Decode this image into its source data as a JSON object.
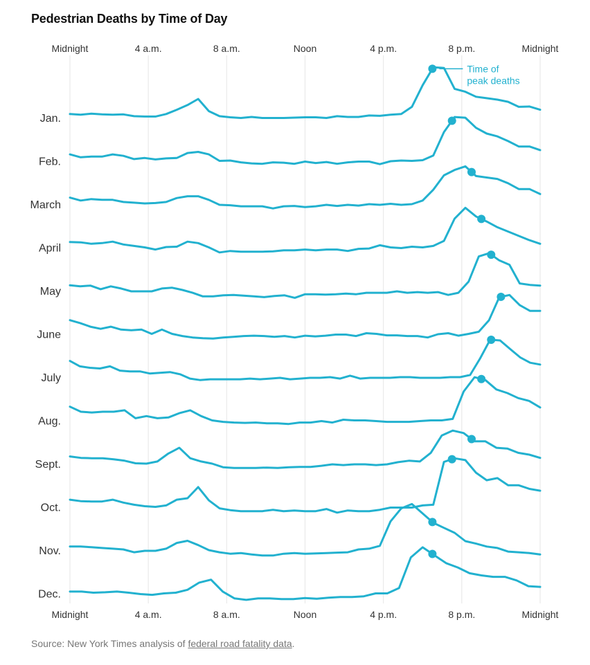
{
  "title": "Pedestrian Deaths by Time of Day",
  "source": {
    "prefix": "Source: New York Times analysis of ",
    "link_text": "federal road fatality data",
    "suffix": "."
  },
  "colors": {
    "line": "#22b1cf",
    "grid": "#e6e6e6",
    "text": "#333333"
  },
  "chart_data": {
    "type": "line",
    "x_ticks": [
      "Midnight",
      "4 a.m.",
      "8 a.m.",
      "Noon",
      "4 p.m.",
      "8 p.m.",
      "Midnight"
    ],
    "x_tick_hours": [
      0,
      4,
      8,
      12,
      16,
      20,
      24
    ],
    "annotation": "Time of peak deaths",
    "grid": "vertical",
    "series": [
      {
        "name": "Jan.",
        "peak_hour": 18.5,
        "values": [
          0.1,
          0.08,
          0.11,
          0.09,
          0.08,
          0.09,
          0.04,
          0.03,
          0.03,
          0.1,
          0.22,
          0.35,
          0.52,
          0.18,
          0.04,
          0.01,
          -0.01,
          0.02,
          -0.01,
          -0.01,
          -0.01,
          0.0,
          0.01,
          0.01,
          -0.01,
          0.04,
          0.02,
          0.02,
          0.06,
          0.05,
          0.08,
          0.1,
          0.3,
          0.9,
          1.4,
          1.38,
          0.8,
          0.72,
          0.58,
          0.54,
          0.5,
          0.44,
          0.3,
          0.31,
          0.22
        ]
      },
      {
        "name": "Feb.",
        "peak_hour": 19.5,
        "values": [
          0.18,
          0.1,
          0.12,
          0.12,
          0.18,
          0.14,
          0.05,
          0.08,
          0.04,
          0.07,
          0.08,
          0.22,
          0.25,
          0.18,
          0.0,
          0.01,
          -0.04,
          -0.07,
          -0.08,
          -0.04,
          -0.05,
          -0.08,
          -0.02,
          -0.06,
          -0.03,
          -0.08,
          -0.04,
          -0.02,
          -0.02,
          -0.09,
          -0.01,
          0.01,
          0.0,
          0.02,
          0.15,
          0.8,
          1.22,
          1.2,
          0.92,
          0.76,
          0.68,
          0.55,
          0.4,
          0.4,
          0.3
        ]
      },
      {
        "name": "March",
        "peak_hour": 20.5,
        "values": [
          0.18,
          0.1,
          0.14,
          0.12,
          0.12,
          0.06,
          0.04,
          0.02,
          0.03,
          0.06,
          0.17,
          0.22,
          0.22,
          0.12,
          -0.02,
          -0.03,
          -0.06,
          -0.06,
          -0.06,
          -0.12,
          -0.06,
          -0.05,
          -0.08,
          -0.06,
          -0.02,
          -0.05,
          -0.02,
          -0.04,
          0.0,
          -0.02,
          0.01,
          -0.02,
          0.0,
          0.1,
          0.4,
          0.8,
          0.95,
          1.05,
          0.78,
          0.74,
          0.7,
          0.58,
          0.42,
          0.42,
          0.28
        ]
      },
      {
        "name": "April",
        "peak_hour": 21.0,
        "values": [
          0.15,
          0.14,
          0.1,
          0.12,
          0.16,
          0.08,
          0.04,
          0.0,
          -0.06,
          0.01,
          0.02,
          0.16,
          0.12,
          0.0,
          -0.14,
          -0.1,
          -0.12,
          -0.12,
          -0.12,
          -0.11,
          -0.08,
          -0.08,
          -0.06,
          -0.08,
          -0.06,
          -0.06,
          -0.1,
          -0.04,
          -0.03,
          0.06,
          0.0,
          -0.02,
          0.02,
          0.0,
          0.04,
          0.18,
          0.8,
          1.1,
          0.86,
          0.72,
          0.56,
          0.44,
          0.32,
          0.2,
          0.1
        ]
      },
      {
        "name": "May",
        "peak_hour": 21.5,
        "values": [
          0.15,
          0.12,
          0.14,
          0.04,
          0.12,
          0.06,
          -0.02,
          -0.02,
          -0.02,
          0.06,
          0.08,
          0.02,
          -0.06,
          -0.16,
          -0.16,
          -0.13,
          -0.12,
          -0.14,
          -0.16,
          -0.18,
          -0.15,
          -0.13,
          -0.2,
          -0.1,
          -0.1,
          -0.11,
          -0.1,
          -0.08,
          -0.1,
          -0.06,
          -0.06,
          -0.06,
          -0.02,
          -0.06,
          -0.04,
          -0.06,
          -0.04,
          -0.12,
          -0.06,
          0.25,
          0.95,
          1.04,
          0.84,
          0.72,
          0.2,
          0.16,
          0.14
        ]
      },
      {
        "name": "June",
        "peak_hour": 22.0,
        "values": [
          0.38,
          0.3,
          0.2,
          0.14,
          0.2,
          0.12,
          0.1,
          0.12,
          0.0,
          0.12,
          0.0,
          -0.06,
          -0.1,
          -0.12,
          -0.13,
          -0.1,
          -0.08,
          -0.06,
          -0.05,
          -0.06,
          -0.08,
          -0.06,
          -0.1,
          -0.05,
          -0.07,
          -0.05,
          -0.02,
          -0.02,
          -0.06,
          0.02,
          0.0,
          -0.04,
          -0.04,
          -0.06,
          -0.06,
          -0.1,
          -0.01,
          0.02,
          -0.05,
          0.0,
          0.06,
          0.38,
          1.02,
          1.08,
          0.8,
          0.64,
          0.64
        ]
      },
      {
        "name": "July",
        "peak_hour": 21.5,
        "values": [
          0.45,
          0.3,
          0.26,
          0.24,
          0.3,
          0.18,
          0.16,
          0.16,
          0.1,
          0.12,
          0.14,
          0.08,
          -0.04,
          -0.08,
          -0.06,
          -0.06,
          -0.06,
          -0.06,
          -0.04,
          -0.06,
          -0.04,
          -0.02,
          -0.06,
          -0.04,
          -0.02,
          -0.02,
          0.0,
          -0.04,
          0.04,
          -0.04,
          -0.02,
          -0.02,
          -0.02,
          0.0,
          0.0,
          -0.02,
          -0.02,
          -0.02,
          0.0,
          0.0,
          0.06,
          0.52,
          1.04,
          1.02,
          0.78,
          0.55,
          0.4,
          0.35
        ]
      },
      {
        "name": "Aug.",
        "peak_hour": 21.0,
        "values": [
          0.38,
          0.24,
          0.22,
          0.24,
          0.24,
          0.28,
          0.06,
          0.12,
          0.06,
          0.08,
          0.2,
          0.28,
          0.12,
          0.0,
          -0.04,
          -0.06,
          -0.07,
          -0.06,
          -0.08,
          -0.08,
          -0.1,
          -0.06,
          -0.06,
          -0.02,
          -0.06,
          0.02,
          0.0,
          0.0,
          -0.02,
          -0.04,
          -0.04,
          -0.04,
          -0.02,
          0.0,
          0.0,
          0.04,
          0.8,
          1.2,
          1.12,
          0.86,
          0.76,
          0.62,
          0.54,
          0.36
        ]
      },
      {
        "name": "Sept.",
        "peak_hour": 20.5,
        "values": [
          0.2,
          0.16,
          0.15,
          0.15,
          0.12,
          0.08,
          0.01,
          0.0,
          0.06,
          0.28,
          0.44,
          0.15,
          0.06,
          0.0,
          -0.1,
          -0.12,
          -0.12,
          -0.12,
          -0.11,
          -0.12,
          -0.1,
          -0.09,
          -0.09,
          -0.06,
          -0.02,
          -0.04,
          -0.02,
          -0.02,
          -0.04,
          -0.02,
          0.04,
          0.08,
          0.06,
          0.3,
          0.78,
          0.92,
          0.85,
          0.62,
          0.62,
          0.44,
          0.42,
          0.3,
          0.25,
          0.16
        ]
      },
      {
        "name": "Oct.",
        "peak_hour": 19.5,
        "values": [
          0.2,
          0.16,
          0.15,
          0.15,
          0.2,
          0.12,
          0.06,
          0.02,
          0.0,
          0.04,
          0.2,
          0.24,
          0.55,
          0.18,
          -0.04,
          -0.09,
          -0.12,
          -0.12,
          -0.12,
          -0.08,
          -0.12,
          -0.1,
          -0.12,
          -0.12,
          -0.06,
          -0.16,
          -0.1,
          -0.12,
          -0.12,
          -0.08,
          -0.02,
          -0.02,
          -0.02,
          0.04,
          0.06,
          1.25,
          1.35,
          1.3,
          0.95,
          0.74,
          0.8,
          0.6,
          0.6,
          0.5,
          0.45
        ]
      },
      {
        "name": "Nov.",
        "peak_hour": 18.5,
        "values": [
          0.1,
          0.1,
          0.08,
          0.06,
          0.04,
          0.02,
          -0.06,
          -0.02,
          -0.02,
          0.04,
          0.2,
          0.26,
          0.14,
          0.0,
          -0.06,
          -0.1,
          -0.08,
          -0.12,
          -0.15,
          -0.15,
          -0.1,
          -0.08,
          -0.1,
          -0.09,
          -0.08,
          -0.07,
          -0.06,
          0.02,
          0.04,
          0.12,
          0.8,
          1.16,
          1.28,
          1.02,
          0.76,
          0.62,
          0.48,
          0.25,
          0.18,
          0.1,
          0.06,
          -0.04,
          -0.06,
          -0.08,
          -0.12
        ]
      },
      {
        "name": "Dec.",
        "peak_hour": 18.5,
        "values": [
          0.05,
          0.05,
          0.02,
          0.03,
          0.05,
          0.02,
          -0.02,
          -0.04,
          0.0,
          0.02,
          0.1,
          0.3,
          0.38,
          0.05,
          -0.14,
          -0.18,
          -0.14,
          -0.14,
          -0.16,
          -0.16,
          -0.13,
          -0.15,
          -0.12,
          -0.1,
          -0.1,
          -0.08,
          0.0,
          0.0,
          0.15,
          1.0,
          1.28,
          1.06,
          0.84,
          0.72,
          0.56,
          0.5,
          0.46,
          0.46,
          0.36,
          0.2,
          0.18
        ]
      }
    ]
  }
}
